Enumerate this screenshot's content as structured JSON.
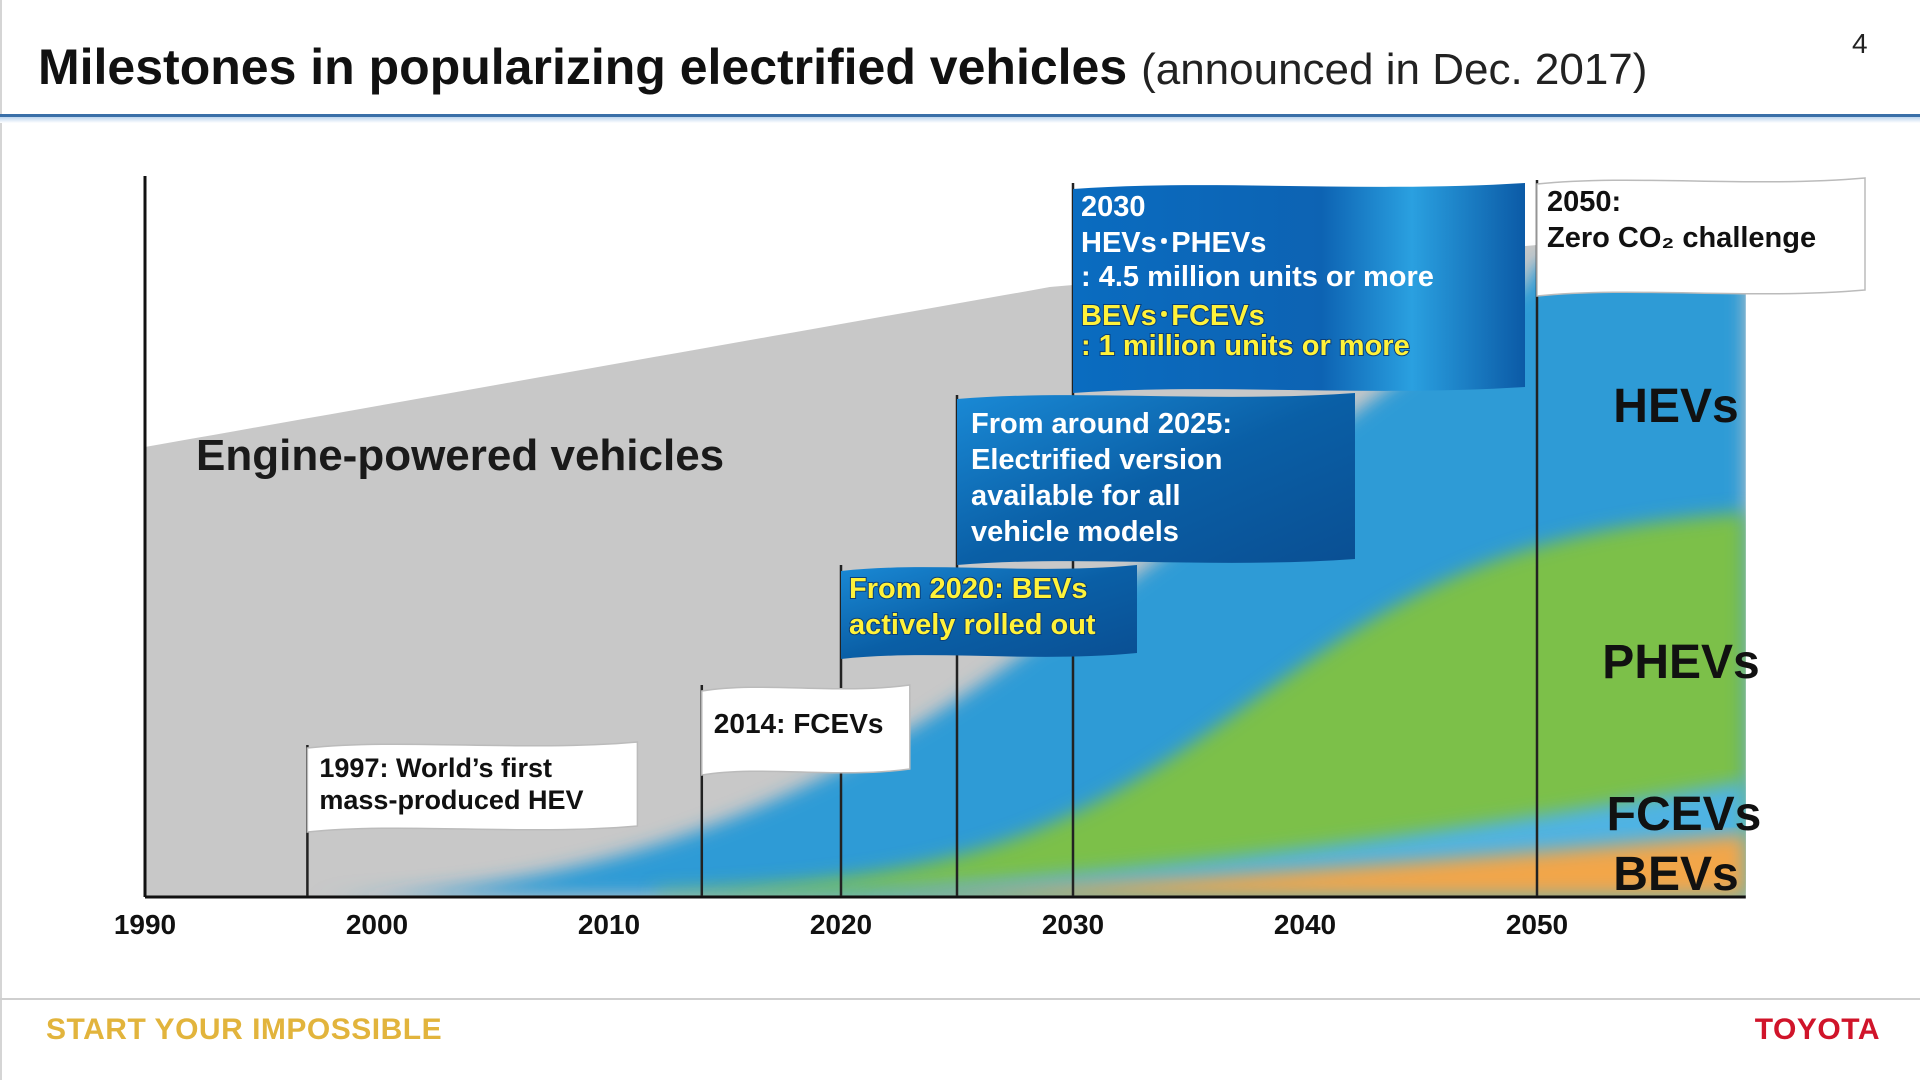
{
  "header": {
    "title": "Milestones in popularizing electrified vehicles",
    "subtitle": "(announced in Dec. 2017)",
    "page_number": "4"
  },
  "footer": {
    "tagline": "START YOUR IMPOSSIBLE",
    "brand": "TOYOTA"
  },
  "colors": {
    "engine": "#c8c8c8",
    "hev": "#2f9bd6",
    "phev": "#7cc04a",
    "fcev": "#4fb3e3",
    "bev": "#f2a64a",
    "flag_blue": "#0b6fb8",
    "flag_white": "#ffffff",
    "highlight_yellow": "#fff23a"
  },
  "chart_data": {
    "type": "area",
    "x_ticks": [
      "1990",
      "2000",
      "2010",
      "2020",
      "2030",
      "2040",
      "2050"
    ],
    "xlim": [
      1990,
      2059
    ],
    "y_scale": "relative share of vehicle sales (no numeric axis)",
    "region_labels": {
      "engine": "Engine-powered vehicles",
      "hev": "HEVs",
      "phev": "PHEVs",
      "fcev": "FCEVs",
      "bev": "BEVs"
    },
    "milestones": [
      {
        "year": 1997,
        "lines": [
          "1997: World’s first",
          "mass-produced HEV"
        ],
        "style": "white"
      },
      {
        "year": 2014,
        "lines": [
          "2014: FCEVs"
        ],
        "style": "white"
      },
      {
        "year": 2020,
        "lines": [
          "From 2020: BEVs",
          "actively rolled out"
        ],
        "style": "blue-yellow"
      },
      {
        "year": 2025,
        "lines": [
          "From around 2025:",
          "Electrified version",
          "available for all",
          "vehicle models"
        ],
        "style": "blue"
      },
      {
        "year": 2030,
        "heading": "2030",
        "lines_white": [
          "HEVs･PHEVs",
          "  : 4.5 million units or more"
        ],
        "lines_yellow": [
          "BEVs･FCEVs",
          "  : 1 million units or more"
        ],
        "style": "blue-mixed"
      },
      {
        "year": 2050,
        "lines": [
          "2050:",
          "Zero CO₂ challenge"
        ],
        "style": "white"
      }
    ]
  }
}
